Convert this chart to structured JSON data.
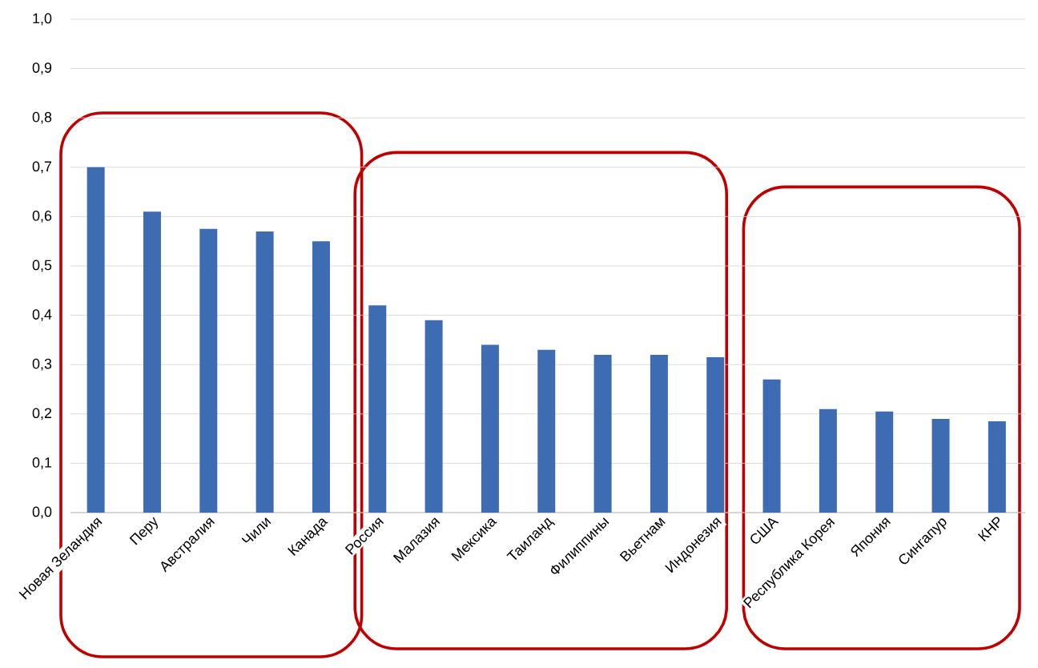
{
  "chart_data": {
    "type": "bar",
    "categories": [
      "Новая Зеландия",
      "Перу",
      "Австралия",
      "Чили",
      "Канада",
      "Россия",
      "Малазия",
      "Мексика",
      "Таиланд",
      "Филиппины",
      "Вьетнам",
      "Индонезия",
      "США",
      "Республика Корея",
      "Япония",
      "Сингапур",
      "КНР"
    ],
    "values": [
      0.7,
      0.61,
      0.575,
      0.57,
      0.55,
      0.42,
      0.39,
      0.34,
      0.33,
      0.32,
      0.32,
      0.315,
      0.27,
      0.21,
      0.205,
      0.19,
      0.185
    ],
    "color": "#3d6cb3",
    "ylim": [
      0,
      1
    ],
    "yticks": [
      {
        "value": 0,
        "label": "0,0"
      },
      {
        "value": 0.1,
        "label": "0,1"
      },
      {
        "value": 0.2,
        "label": "0,2"
      },
      {
        "value": 0.3,
        "label": "0,3"
      },
      {
        "value": 0.4,
        "label": "0,4"
      },
      {
        "value": 0.5,
        "label": "0,5"
      },
      {
        "value": 0.6,
        "label": "0,6"
      },
      {
        "value": 0.7,
        "label": "0,7"
      },
      {
        "value": 0.8,
        "label": "0,8"
      },
      {
        "value": 0.9,
        "label": "0,9"
      },
      {
        "value": 1,
        "label": "1,0"
      }
    ],
    "grid": "y"
  }
}
